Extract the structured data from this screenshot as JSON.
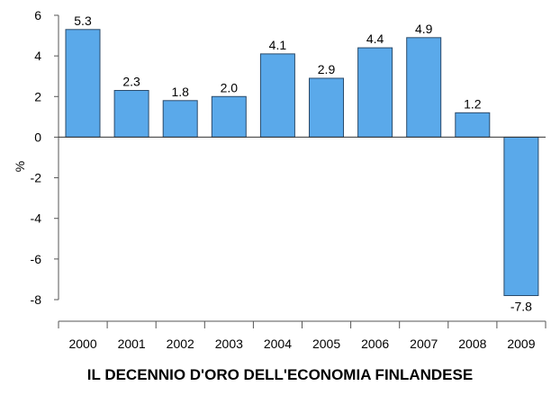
{
  "chart_data": {
    "type": "bar",
    "title": "IL DECENNIO D'ORO DELL'ECONOMIA FINLANDESE",
    "ylabel": "%",
    "xlabel": "",
    "categories": [
      "2000",
      "2001",
      "2002",
      "2003",
      "2004",
      "2005",
      "2006",
      "2007",
      "2008",
      "2009"
    ],
    "values": [
      5.3,
      2.3,
      1.8,
      2.0,
      4.1,
      2.9,
      4.4,
      4.9,
      1.2,
      -7.8
    ],
    "data_labels": [
      "5.3",
      "2.3",
      "1.8",
      "2.0",
      "4.1",
      "2.9",
      "4.4",
      "4.9",
      "1.2",
      "-7.8"
    ],
    "yticks": [
      "6",
      "4",
      "2",
      "0",
      "-2",
      "-4",
      "-6",
      "-8"
    ],
    "ylim": [
      -8,
      6
    ],
    "grid": false,
    "bar_color": "#5aa9ea",
    "bar_edge_color": "#2a4a6a"
  }
}
